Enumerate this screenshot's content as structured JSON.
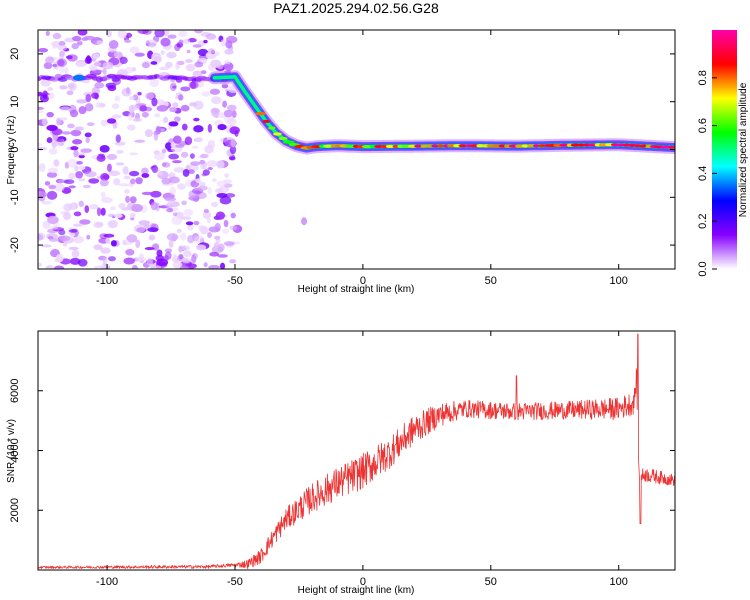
{
  "title": "PAZ1.2025.294.02.56.G28",
  "colors": {
    "snr_line": "#ee3333",
    "frame": "#000000"
  },
  "chart_data": [
    {
      "type": "heatmap",
      "name": "spectrogram",
      "xlabel": "Height of straight line (km)",
      "ylabel": "Frequency (Hz)",
      "xlim": [
        -127,
        122
      ],
      "ylim": [
        -25,
        25
      ],
      "xticks": [
        -100,
        -50,
        0,
        50,
        100
      ],
      "xtick_labels": [
        "-100",
        "-50",
        "0",
        "50",
        "100"
      ],
      "yticks": [
        20,
        10,
        0,
        -10,
        -20
      ],
      "ytick_labels": [
        "20",
        "10",
        "0",
        "-10",
        "-20"
      ],
      "noise_region_x": [
        -127,
        -50
      ],
      "ridge": {
        "x": [
          -127,
          -58,
          -50,
          -46,
          -42,
          -38,
          -34,
          -30,
          -26,
          -22,
          -18,
          -10,
          0,
          20,
          40,
          60,
          80,
          100,
          122
        ],
        "y": [
          15,
          15,
          15.2,
          12,
          9,
          6,
          3.5,
          1.8,
          0.8,
          0.3,
          0.6,
          0.8,
          0.6,
          0.7,
          0.8,
          0.7,
          0.9,
          1.0,
          0.4
        ]
      },
      "colorbar": {
        "label": "Normalized spectral amplitude",
        "range": [
          0,
          1
        ],
        "ticks": [
          0.0,
          0.2,
          0.4,
          0.6,
          0.8
        ],
        "tick_labels": [
          "0.0",
          "0.2",
          "0.4",
          "0.6",
          "0.8"
        ],
        "colormap": [
          "#ffffff",
          "#8800ff",
          "#0000ff",
          "#00ffff",
          "#00ff00",
          "#ffff00",
          "#ff0000",
          "#ff00aa"
        ]
      }
    },
    {
      "type": "line",
      "name": "snr",
      "xlabel": "Height of straight line (km)",
      "ylabel": "SNR (10 * v/v)",
      "xlim": [
        -127,
        122
      ],
      "ylim": [
        0,
        8000
      ],
      "xticks": [
        -100,
        -50,
        0,
        50,
        100
      ],
      "xtick_labels": [
        "-100",
        "-50",
        "0",
        "50",
        "100"
      ],
      "yticks": [
        2000,
        4000,
        6000
      ],
      "ytick_labels": [
        "2000",
        "4000",
        "6000"
      ],
      "trend": {
        "x": [
          -127,
          -60,
          -45,
          -40,
          -35,
          -30,
          -20,
          -10,
          0,
          10,
          20,
          30,
          40,
          60,
          80,
          100,
          106,
          107,
          108,
          110,
          122
        ],
        "y": [
          90,
          110,
          200,
          450,
          1100,
          1700,
          2400,
          2900,
          3300,
          3900,
          4700,
          5200,
          5400,
          5300,
          5350,
          5400,
          5600,
          6500,
          3000,
          3200,
          3000
        ]
      },
      "noise_amplitude": {
        "x": [
          -127,
          -50,
          -40,
          -20,
          0,
          20,
          40,
          80,
          105,
          110,
          122
        ],
        "y": [
          40,
          60,
          250,
          500,
          600,
          500,
          300,
          300,
          400,
          250,
          200
        ]
      },
      "spikes": [
        {
          "x": 107.5,
          "y": 7900
        },
        {
          "x": 108.5,
          "y": 1550
        },
        {
          "x": 60,
          "y": 6500
        }
      ]
    }
  ]
}
